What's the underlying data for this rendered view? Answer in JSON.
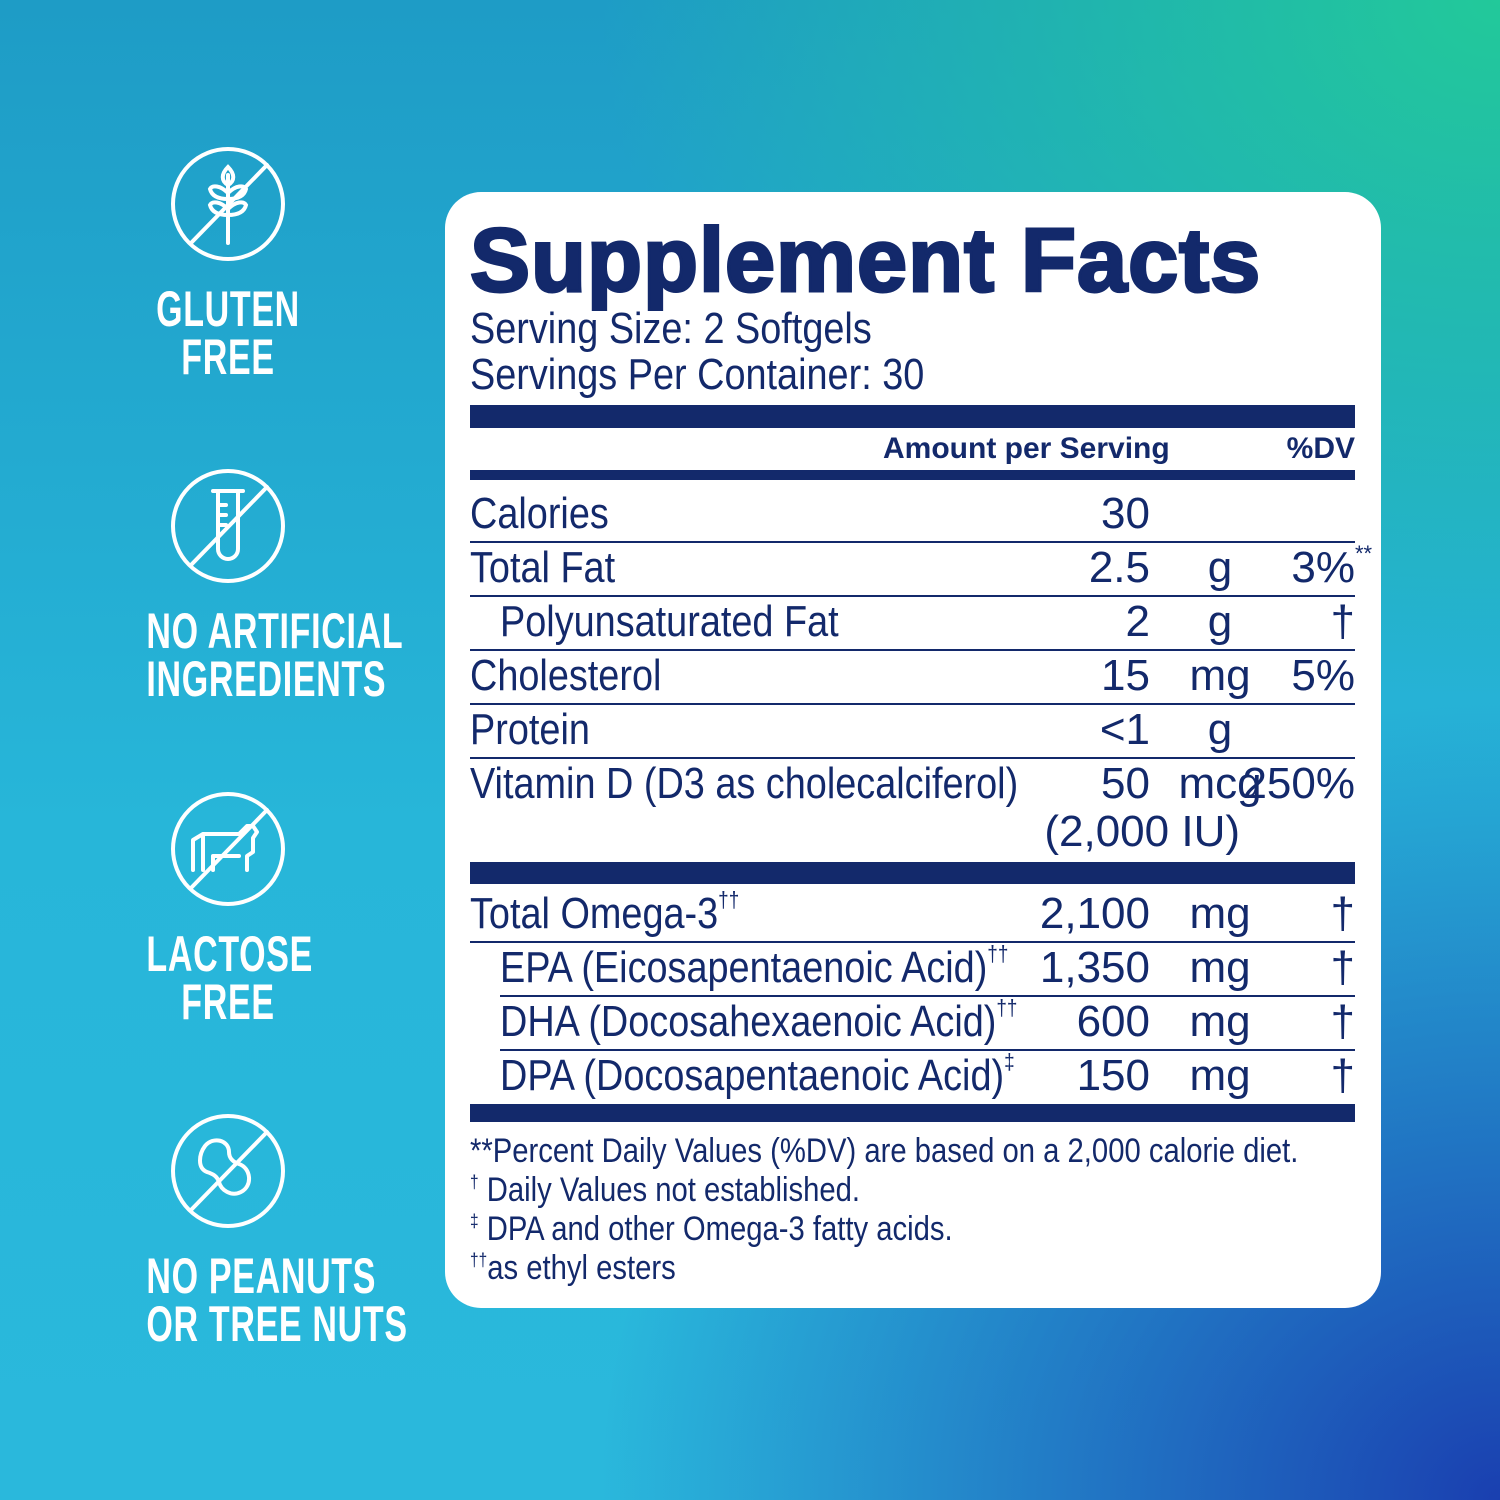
{
  "badges": [
    {
      "icon": "no-gluten-wheat-icon",
      "line1": "GLUTEN",
      "line2": "FREE"
    },
    {
      "icon": "no-artificial-test-tube-icon",
      "line1": "NO ARTIFICIAL",
      "line2": "INGREDIENTS"
    },
    {
      "icon": "no-lactose-cow-icon",
      "line1": "LACTOSE",
      "line2": "FREE"
    },
    {
      "icon": "no-peanut-icon",
      "line1": "NO PEANUTS",
      "line2": "OR TREE NUTS"
    }
  ],
  "label": {
    "title": "Supplement Facts",
    "serving_size": "Serving Size: 2 Softgels",
    "servings_per_container": "Servings Per Container: 30",
    "header_amount": "Amount per Serving",
    "header_dv": "%DV",
    "rows": [
      {
        "name": "Calories",
        "amount": "30",
        "unit": "",
        "dv": ""
      },
      {
        "name": "Total Fat",
        "amount": "2.5",
        "unit": "g",
        "dv": "3%",
        "dv_sup": "**"
      },
      {
        "name": "Polyunsaturated Fat",
        "amount": "2",
        "unit": "g",
        "dv": "†",
        "indent": true
      },
      {
        "name": "Cholesterol",
        "amount": "15",
        "unit": "mg",
        "dv": "5%"
      },
      {
        "name": "Protein",
        "amount": "<1",
        "unit": "g",
        "dv": ""
      },
      {
        "name": "Vitamin D (D3 as cholecalciferol)",
        "amount": "50",
        "unit": "mcg",
        "dv": "250%",
        "extra": "(2,000 IU)"
      }
    ],
    "omega_rows": [
      {
        "name": "Total Omega-3",
        "sup": "††",
        "amount": "2,100",
        "unit": "mg",
        "dv": "†"
      },
      {
        "name": "EPA (Eicosapentaenoic Acid)",
        "sup": "††",
        "amount": "1,350",
        "unit": "mg",
        "dv": "†",
        "indent": true
      },
      {
        "name": "DHA (Docosahexaenoic Acid)",
        "sup": "††",
        "amount": "600",
        "unit": "mg",
        "dv": "†",
        "indent": true
      },
      {
        "name": "DPA (Docosapentaenoic Acid)",
        "sup": "‡",
        "amount": "150",
        "unit": "mg",
        "dv": "†",
        "indent": true
      }
    ],
    "footnotes": [
      {
        "mark": "",
        "text": "**Percent Daily Values (%DV) are based on a 2,000 calorie diet."
      },
      {
        "mark": "†",
        "text": " Daily Values not established."
      },
      {
        "mark": "‡",
        "text": " DPA and other Omega-3 fatty acids."
      },
      {
        "mark": "††",
        "text": "as ethyl esters"
      }
    ]
  },
  "colors": {
    "navy": "#13296b",
    "card": "#ffffff",
    "bg_teal": "#22c99a",
    "bg_blue": "#1a3fb0",
    "bg_cyan": "#27b6d9"
  }
}
